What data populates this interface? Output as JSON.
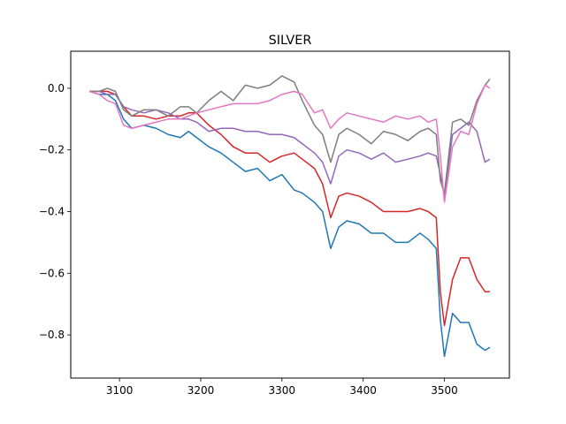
{
  "chart_data": {
    "type": "line",
    "title": "SILVER",
    "xlabel": "",
    "ylabel": "",
    "xlim": [
      3040,
      3580
    ],
    "ylim": [
      -0.94,
      0.12
    ],
    "xticks": [
      3100,
      3200,
      3300,
      3400,
      3500
    ],
    "yticks": [
      0.0,
      -0.2,
      -0.4,
      -0.6,
      -0.8
    ],
    "ytick_labels": [
      "0.0",
      "−0.2",
      "−0.4",
      "−0.6",
      "−0.8"
    ],
    "grid": false,
    "series": [
      {
        "color": "#1f77b4",
        "x": [
          3063,
          3075,
          3085,
          3095,
          3105,
          3115,
          3130,
          3145,
          3160,
          3175,
          3185,
          3195,
          3210,
          3225,
          3240,
          3255,
          3270,
          3285,
          3300,
          3315,
          3325,
          3340,
          3350,
          3360,
          3370,
          3380,
          3395,
          3410,
          3425,
          3440,
          3455,
          3470,
          3480,
          3490,
          3495,
          3500,
          3510,
          3520,
          3530,
          3540,
          3550,
          3556
        ],
        "values": [
          -0.01,
          -0.02,
          -0.02,
          -0.04,
          -0.1,
          -0.13,
          -0.12,
          -0.13,
          -0.15,
          -0.16,
          -0.14,
          -0.16,
          -0.19,
          -0.21,
          -0.24,
          -0.27,
          -0.26,
          -0.3,
          -0.28,
          -0.33,
          -0.34,
          -0.37,
          -0.4,
          -0.52,
          -0.45,
          -0.43,
          -0.44,
          -0.47,
          -0.47,
          -0.5,
          -0.5,
          -0.47,
          -0.49,
          -0.52,
          -0.75,
          -0.87,
          -0.73,
          -0.76,
          -0.76,
          -0.83,
          -0.85,
          -0.84
        ]
      },
      {
        "color": "#d62728",
        "x": [
          3063,
          3075,
          3085,
          3095,
          3105,
          3115,
          3130,
          3145,
          3160,
          3175,
          3185,
          3195,
          3210,
          3225,
          3240,
          3255,
          3270,
          3285,
          3300,
          3315,
          3325,
          3340,
          3350,
          3360,
          3370,
          3380,
          3395,
          3410,
          3425,
          3440,
          3455,
          3470,
          3480,
          3490,
          3495,
          3500,
          3510,
          3520,
          3530,
          3540,
          3550,
          3556
        ],
        "values": [
          -0.01,
          -0.01,
          -0.01,
          -0.02,
          -0.06,
          -0.09,
          -0.09,
          -0.1,
          -0.09,
          -0.09,
          -0.08,
          -0.08,
          -0.12,
          -0.15,
          -0.19,
          -0.21,
          -0.21,
          -0.24,
          -0.22,
          -0.21,
          -0.23,
          -0.26,
          -0.31,
          -0.42,
          -0.35,
          -0.34,
          -0.35,
          -0.37,
          -0.4,
          -0.4,
          -0.4,
          -0.39,
          -0.4,
          -0.42,
          -0.66,
          -0.77,
          -0.62,
          -0.55,
          -0.55,
          -0.62,
          -0.66,
          -0.66
        ]
      },
      {
        "color": "#9467bd",
        "x": [
          3063,
          3075,
          3085,
          3095,
          3105,
          3115,
          3130,
          3145,
          3160,
          3175,
          3185,
          3195,
          3210,
          3225,
          3240,
          3255,
          3270,
          3285,
          3300,
          3315,
          3325,
          3340,
          3350,
          3360,
          3370,
          3380,
          3395,
          3410,
          3425,
          3440,
          3455,
          3470,
          3480,
          3490,
          3495,
          3500,
          3510,
          3520,
          3530,
          3540,
          3550,
          3556
        ],
        "values": [
          -0.01,
          -0.01,
          -0.02,
          -0.02,
          -0.06,
          -0.07,
          -0.08,
          -0.07,
          -0.08,
          -0.1,
          -0.1,
          -0.11,
          -0.14,
          -0.13,
          -0.13,
          -0.14,
          -0.14,
          -0.15,
          -0.15,
          -0.16,
          -0.18,
          -0.21,
          -0.24,
          -0.31,
          -0.22,
          -0.2,
          -0.21,
          -0.23,
          -0.21,
          -0.24,
          -0.23,
          -0.22,
          -0.21,
          -0.22,
          -0.28,
          -0.35,
          -0.15,
          -0.13,
          -0.11,
          -0.14,
          -0.24,
          -0.23
        ]
      },
      {
        "color": "#7f7f7f",
        "x": [
          3063,
          3075,
          3085,
          3095,
          3105,
          3115,
          3130,
          3145,
          3160,
          3175,
          3185,
          3195,
          3210,
          3225,
          3240,
          3255,
          3270,
          3285,
          3300,
          3315,
          3325,
          3340,
          3350,
          3360,
          3370,
          3380,
          3395,
          3410,
          3425,
          3440,
          3455,
          3470,
          3480,
          3490,
          3495,
          3500,
          3510,
          3520,
          3530,
          3540,
          3550,
          3556
        ],
        "values": [
          -0.01,
          -0.01,
          0.0,
          -0.01,
          -0.07,
          -0.09,
          -0.07,
          -0.07,
          -0.09,
          -0.06,
          -0.06,
          -0.08,
          -0.04,
          -0.01,
          -0.04,
          0.01,
          0.0,
          0.01,
          0.04,
          0.02,
          -0.04,
          -0.12,
          -0.15,
          -0.24,
          -0.15,
          -0.13,
          -0.15,
          -0.18,
          -0.14,
          -0.15,
          -0.17,
          -0.14,
          -0.13,
          -0.15,
          -0.3,
          -0.34,
          -0.11,
          -0.1,
          -0.12,
          -0.04,
          0.01,
          0.03
        ]
      },
      {
        "color": "#e377c2",
        "x": [
          3063,
          3075,
          3085,
          3095,
          3105,
          3115,
          3130,
          3145,
          3160,
          3175,
          3185,
          3195,
          3210,
          3225,
          3240,
          3255,
          3270,
          3285,
          3300,
          3315,
          3325,
          3340,
          3350,
          3360,
          3370,
          3380,
          3395,
          3410,
          3425,
          3440,
          3455,
          3470,
          3480,
          3490,
          3495,
          3500,
          3510,
          3520,
          3530,
          3540,
          3550,
          3556
        ],
        "values": [
          -0.01,
          -0.02,
          -0.04,
          -0.05,
          -0.12,
          -0.13,
          -0.12,
          -0.11,
          -0.1,
          -0.1,
          -0.09,
          -0.08,
          -0.07,
          -0.06,
          -0.05,
          -0.05,
          -0.05,
          -0.04,
          -0.02,
          -0.01,
          -0.02,
          -0.08,
          -0.07,
          -0.13,
          -0.1,
          -0.08,
          -0.09,
          -0.1,
          -0.11,
          -0.09,
          -0.1,
          -0.09,
          -0.11,
          -0.1,
          -0.22,
          -0.37,
          -0.19,
          -0.14,
          -0.15,
          -0.05,
          0.01,
          0.0
        ]
      }
    ]
  }
}
